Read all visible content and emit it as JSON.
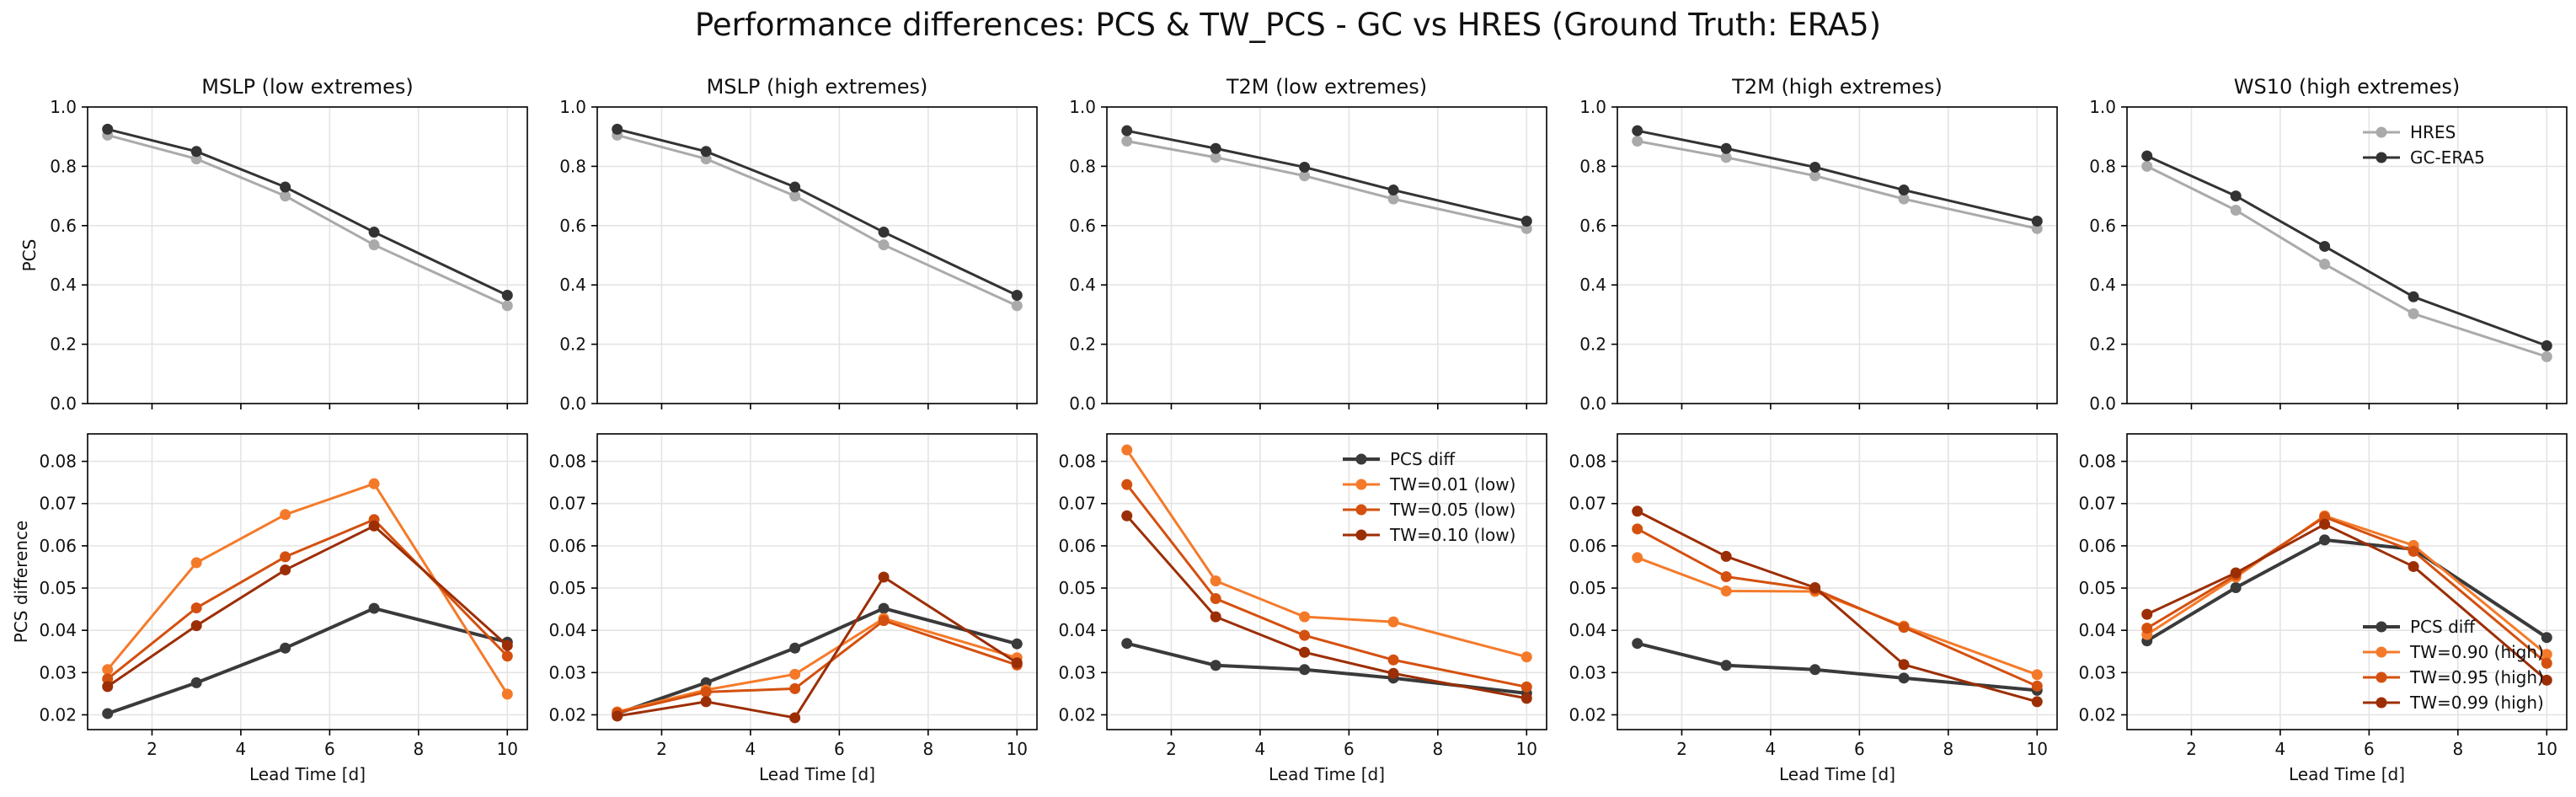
{
  "title": "Performance differences: PCS & TW_PCS - GC vs HRES (Ground Truth: ERA5)",
  "colors": {
    "hres": "#aaaaaa",
    "gc_era5": "#333333",
    "pcs_diff": "#3a3a3a",
    "tw_1": "#f47a2a",
    "tw_2": "#d4500f",
    "tw_3": "#9c2e05",
    "grid": "#e4e4e4"
  },
  "chart_data": [
    {
      "type": "line",
      "title": "MSLP (low extremes)",
      "ylabel": "PCS",
      "xlabel": "",
      "x": [
        1,
        3,
        5,
        7,
        10
      ],
      "xlim": [
        0.55,
        10.45
      ],
      "ylim": [
        0.0,
        1.0
      ],
      "yticks": [
        "0.0",
        "0.2",
        "0.4",
        "0.6",
        "0.8",
        "1.0"
      ],
      "xticks": [
        2,
        4,
        6,
        8,
        10
      ],
      "show_xticklabels": false,
      "grid": true,
      "series": [
        {
          "name": "HRES",
          "color_key": "hres",
          "values": [
            0.905,
            0.825,
            0.7,
            0.535,
            0.33
          ]
        },
        {
          "name": "GC-ERA5",
          "color_key": "gc_era5",
          "values": [
            0.925,
            0.85,
            0.73,
            0.578,
            0.365
          ]
        }
      ]
    },
    {
      "type": "line",
      "title": "MSLP (high extremes)",
      "ylabel": "",
      "xlabel": "",
      "x": [
        1,
        3,
        5,
        7,
        10
      ],
      "xlim": [
        0.55,
        10.45
      ],
      "ylim": [
        0.0,
        1.0
      ],
      "yticks": [
        "0.0",
        "0.2",
        "0.4",
        "0.6",
        "0.8",
        "1.0"
      ],
      "xticks": [
        2,
        4,
        6,
        8,
        10
      ],
      "show_xticklabels": false,
      "grid": true,
      "series": [
        {
          "name": "HRES",
          "color_key": "hres",
          "values": [
            0.905,
            0.825,
            0.7,
            0.535,
            0.33
          ]
        },
        {
          "name": "GC-ERA5",
          "color_key": "gc_era5",
          "values": [
            0.925,
            0.85,
            0.73,
            0.578,
            0.365
          ]
        }
      ]
    },
    {
      "type": "line",
      "title": "T2M (low extremes)",
      "ylabel": "",
      "xlabel": "",
      "x": [
        1,
        3,
        5,
        7,
        10
      ],
      "xlim": [
        0.55,
        10.45
      ],
      "ylim": [
        0.0,
        1.0
      ],
      "yticks": [
        "0.0",
        "0.2",
        "0.4",
        "0.6",
        "0.8",
        "1.0"
      ],
      "xticks": [
        2,
        4,
        6,
        8,
        10
      ],
      "show_xticklabels": false,
      "grid": true,
      "series": [
        {
          "name": "HRES",
          "color_key": "hres",
          "values": [
            0.885,
            0.83,
            0.768,
            0.69,
            0.59
          ]
        },
        {
          "name": "GC-ERA5",
          "color_key": "gc_era5",
          "values": [
            0.92,
            0.86,
            0.797,
            0.72,
            0.615
          ]
        }
      ]
    },
    {
      "type": "line",
      "title": "T2M (high extremes)",
      "ylabel": "",
      "xlabel": "",
      "x": [
        1,
        3,
        5,
        7,
        10
      ],
      "xlim": [
        0.55,
        10.45
      ],
      "ylim": [
        0.0,
        1.0
      ],
      "yticks": [
        "0.0",
        "0.2",
        "0.4",
        "0.6",
        "0.8",
        "1.0"
      ],
      "xticks": [
        2,
        4,
        6,
        8,
        10
      ],
      "show_xticklabels": false,
      "grid": true,
      "series": [
        {
          "name": "HRES",
          "color_key": "hres",
          "values": [
            0.885,
            0.83,
            0.768,
            0.69,
            0.59
          ]
        },
        {
          "name": "GC-ERA5",
          "color_key": "gc_era5",
          "values": [
            0.92,
            0.86,
            0.797,
            0.72,
            0.615
          ]
        }
      ]
    },
    {
      "type": "line",
      "title": "WS10 (high extremes)",
      "ylabel": "",
      "xlabel": "",
      "x": [
        1,
        3,
        5,
        7,
        10
      ],
      "xlim": [
        0.55,
        10.45
      ],
      "ylim": [
        0.0,
        1.0
      ],
      "yticks": [
        "0.0",
        "0.2",
        "0.4",
        "0.6",
        "0.8",
        "1.0"
      ],
      "xticks": [
        2,
        4,
        6,
        8,
        10
      ],
      "show_xticklabels": false,
      "grid": true,
      "legend": {
        "position": "top-right",
        "entries": [
          "HRES",
          "GC-ERA5"
        ]
      },
      "series": [
        {
          "name": "HRES",
          "color_key": "hres",
          "values": [
            0.8,
            0.652,
            0.47,
            0.303,
            0.158
          ]
        },
        {
          "name": "GC-ERA5",
          "color_key": "gc_era5",
          "values": [
            0.835,
            0.7,
            0.53,
            0.36,
            0.195
          ]
        }
      ]
    },
    {
      "type": "line",
      "title": "",
      "ylabel": "PCS difference",
      "xlabel": "Lead Time [d]",
      "x": [
        1,
        3,
        5,
        7,
        10
      ],
      "xlim": [
        0.55,
        10.45
      ],
      "ylim": [
        0.0165,
        0.0865
      ],
      "yticks": [
        "0.02",
        "0.03",
        "0.04",
        "0.05",
        "0.06",
        "0.07",
        "0.08"
      ],
      "xticks": [
        2,
        4,
        6,
        8,
        10
      ],
      "show_xticklabels": true,
      "grid": true,
      "series": [
        {
          "name": "PCS diff",
          "color_key": "pcs_diff",
          "thick": true,
          "values": [
            0.0203,
            0.0276,
            0.0358,
            0.0452,
            0.0372
          ]
        },
        {
          "name": "TW=0.01 (low)",
          "color_key": "tw_1",
          "values": [
            0.0307,
            0.056,
            0.0674,
            0.0747,
            0.0249
          ]
        },
        {
          "name": "TW=0.05 (low)",
          "color_key": "tw_2",
          "values": [
            0.0285,
            0.0453,
            0.0574,
            0.0662,
            0.0339
          ]
        },
        {
          "name": "TW=0.10 (low)",
          "color_key": "tw_3",
          "values": [
            0.0267,
            0.0411,
            0.0543,
            0.0647,
            0.0364
          ]
        }
      ]
    },
    {
      "type": "line",
      "title": "",
      "ylabel": "",
      "xlabel": "Lead Time [d]",
      "x": [
        1,
        3,
        5,
        7,
        10
      ],
      "xlim": [
        0.55,
        10.45
      ],
      "ylim": [
        0.0165,
        0.0865
      ],
      "yticks": [
        "0.02",
        "0.03",
        "0.04",
        "0.05",
        "0.06",
        "0.07",
        "0.08"
      ],
      "xticks": [
        2,
        4,
        6,
        8,
        10
      ],
      "show_xticklabels": true,
      "grid": true,
      "series": [
        {
          "name": "PCS diff",
          "color_key": "pcs_diff",
          "thick": true,
          "values": [
            0.0203,
            0.0276,
            0.0358,
            0.0452,
            0.0368
          ]
        },
        {
          "name": "TW=0.90 (high)",
          "color_key": "tw_1",
          "values": [
            0.0207,
            0.0259,
            0.0296,
            0.0428,
            0.0335
          ]
        },
        {
          "name": "TW=0.95 (high)",
          "color_key": "tw_2",
          "values": [
            0.0205,
            0.0254,
            0.0262,
            0.0423,
            0.0318
          ]
        },
        {
          "name": "TW=0.99 (high)",
          "color_key": "tw_3",
          "values": [
            0.0197,
            0.0231,
            0.0193,
            0.0526,
            0.0323
          ]
        }
      ]
    },
    {
      "type": "line",
      "title": "",
      "ylabel": "",
      "xlabel": "Lead Time [d]",
      "x": [
        1,
        3,
        5,
        7,
        10
      ],
      "xlim": [
        0.55,
        10.45
      ],
      "ylim": [
        0.0165,
        0.0865
      ],
      "yticks": [
        "0.02",
        "0.03",
        "0.04",
        "0.05",
        "0.06",
        "0.07",
        "0.08"
      ],
      "xticks": [
        2,
        4,
        6,
        8,
        10
      ],
      "show_xticklabels": true,
      "grid": true,
      "legend": {
        "position": "top-right",
        "entries": [
          "PCS diff",
          "TW=0.01 (low)",
          "TW=0.05 (low)",
          "TW=0.10 (low)"
        ]
      },
      "series": [
        {
          "name": "PCS diff",
          "color_key": "pcs_diff",
          "thick": true,
          "values": [
            0.0369,
            0.0317,
            0.0307,
            0.0287,
            0.0251
          ]
        },
        {
          "name": "TW=0.01 (low)",
          "color_key": "tw_1",
          "values": [
            0.0827,
            0.0517,
            0.0432,
            0.042,
            0.0337
          ]
        },
        {
          "name": "TW=0.05 (low)",
          "color_key": "tw_2",
          "values": [
            0.0745,
            0.0475,
            0.0388,
            0.033,
            0.0266
          ]
        },
        {
          "name": "TW=0.10 (low)",
          "color_key": "tw_3",
          "values": [
            0.0671,
            0.0432,
            0.0348,
            0.0298,
            0.0239
          ]
        }
      ]
    },
    {
      "type": "line",
      "title": "",
      "ylabel": "",
      "xlabel": "Lead Time [d]",
      "x": [
        1,
        3,
        5,
        7,
        10
      ],
      "xlim": [
        0.55,
        10.45
      ],
      "ylim": [
        0.0165,
        0.0865
      ],
      "yticks": [
        "0.02",
        "0.03",
        "0.04",
        "0.05",
        "0.06",
        "0.07",
        "0.08"
      ],
      "xticks": [
        2,
        4,
        6,
        8,
        10
      ],
      "show_xticklabels": true,
      "grid": true,
      "series": [
        {
          "name": "PCS diff",
          "color_key": "pcs_diff",
          "thick": true,
          "values": [
            0.0369,
            0.0317,
            0.0307,
            0.0287,
            0.0258
          ]
        },
        {
          "name": "TW=0.90 (high)",
          "color_key": "tw_1",
          "values": [
            0.0572,
            0.0493,
            0.0492,
            0.041,
            0.0295
          ]
        },
        {
          "name": "TW=0.95 (high)",
          "color_key": "tw_2",
          "values": [
            0.064,
            0.0527,
            0.0497,
            0.0407,
            0.0268
          ]
        },
        {
          "name": "TW=0.99 (high)",
          "color_key": "tw_3",
          "values": [
            0.0682,
            0.0575,
            0.0501,
            0.0319,
            0.0231
          ]
        }
      ]
    },
    {
      "type": "line",
      "title": "",
      "ylabel": "",
      "xlabel": "Lead Time [d]",
      "x": [
        1,
        3,
        5,
        7,
        10
      ],
      "xlim": [
        0.55,
        10.45
      ],
      "ylim": [
        0.0165,
        0.0865
      ],
      "yticks": [
        "0.02",
        "0.03",
        "0.04",
        "0.05",
        "0.06",
        "0.07",
        "0.08"
      ],
      "xticks": [
        2,
        4,
        6,
        8,
        10
      ],
      "show_xticklabels": true,
      "grid": true,
      "legend": {
        "position": "bottom-right",
        "entries": [
          "PCS diff",
          "TW=0.90 (high)",
          "TW=0.95 (high)",
          "TW=0.99 (high)"
        ]
      },
      "series": [
        {
          "name": "PCS diff",
          "color_key": "pcs_diff",
          "thick": true,
          "values": [
            0.0375,
            0.0501,
            0.0614,
            0.0592,
            0.0383
          ]
        },
        {
          "name": "TW=0.90 (high)",
          "color_key": "tw_1",
          "values": [
            0.039,
            0.0526,
            0.0671,
            0.0601,
            0.0343
          ]
        },
        {
          "name": "TW=0.95 (high)",
          "color_key": "tw_2",
          "values": [
            0.0405,
            0.0531,
            0.0668,
            0.0587,
            0.0322
          ]
        },
        {
          "name": "TW=0.99 (high)",
          "color_key": "tw_3",
          "values": [
            0.0438,
            0.0536,
            0.0651,
            0.0551,
            0.0282
          ]
        }
      ]
    }
  ]
}
